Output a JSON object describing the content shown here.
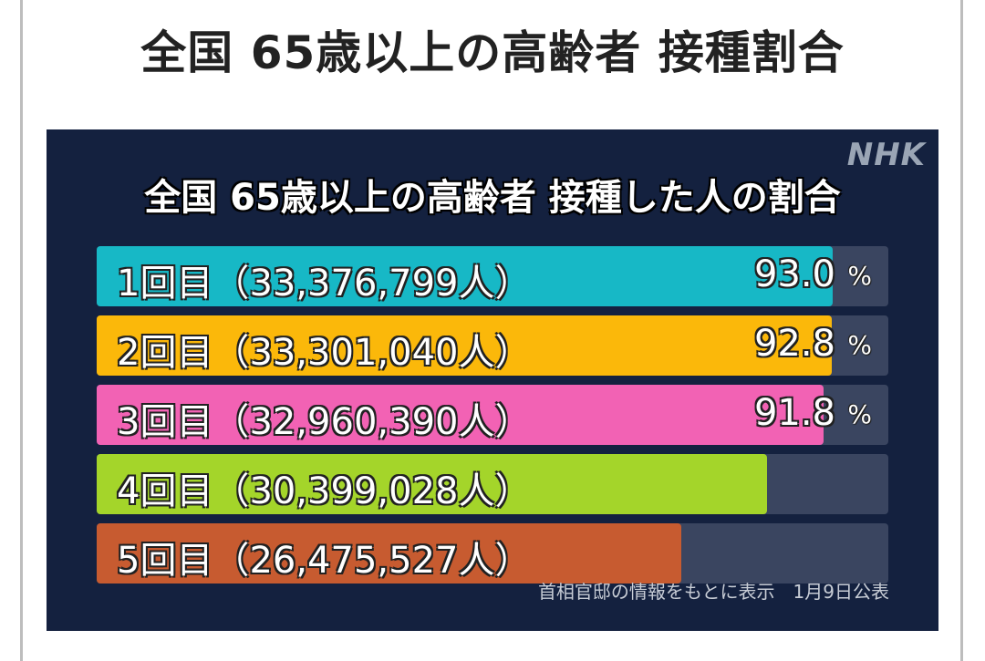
{
  "page_title": "全国 65歳以上の高齢者 接種割合",
  "panel": {
    "logo": "NHK",
    "title": "全国 65歳以上の高齢者 接種した人の割合",
    "footnote": "首相官邸の情報をもとに表示　1月9日公表"
  },
  "chart_data": {
    "type": "bar",
    "orientation": "horizontal",
    "title": "全国 65歳以上の高齢者 接種した人の割合",
    "xlim": [
      0,
      100
    ],
    "bars": [
      {
        "label": "1回目（33,376,799人）",
        "dose": "1回目",
        "people": "33,376,799",
        "value": 93.0,
        "value_text": "93.0",
        "unit": "%",
        "color": "#17b8c6"
      },
      {
        "label": "2回目（33,301,040人）",
        "dose": "2回目",
        "people": "33,301,040",
        "value": 92.8,
        "value_text": "92.8",
        "unit": "%",
        "color": "#fbb80a"
      },
      {
        "label": "3回目（32,960,390人）",
        "dose": "3回目",
        "people": "32,960,390",
        "value": 91.8,
        "value_text": "91.8",
        "unit": "%",
        "color": "#f262b4"
      },
      {
        "label": "4回目（30,399,028人）",
        "dose": "4回目",
        "people": "30,399,028",
        "value": 84.7,
        "value_text": "",
        "unit": "",
        "color": "#a4d52a"
      },
      {
        "label": "5回目（26,475,527人）",
        "dose": "5回目",
        "people": "26,475,527",
        "value": 73.8,
        "value_text": "",
        "unit": "",
        "color": "#c75b30"
      }
    ]
  }
}
